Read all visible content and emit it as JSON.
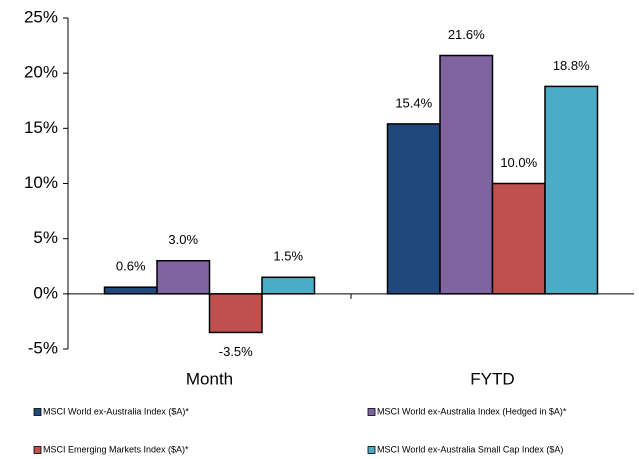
{
  "chart_data": {
    "type": "bar",
    "categories": [
      "Month",
      "FYTD"
    ],
    "series": [
      {
        "name": "MSCI World ex-Australia Index ($A)*",
        "color": "#1f497d",
        "values": [
          0.6,
          15.4
        ],
        "value_labels": [
          "0.6%",
          "15.4%"
        ]
      },
      {
        "name": "MSCI World ex-Australia Index (Hedged in $A)*",
        "color": "#8064a2",
        "values": [
          3.0,
          21.6
        ],
        "value_labels": [
          "3.0%",
          "21.6%"
        ]
      },
      {
        "name": "MSCI Emerging Markets Index ($A)*",
        "color": "#c0504d",
        "values": [
          -3.5,
          10.0
        ],
        "value_labels": [
          "-3.5%",
          "10.0%"
        ]
      },
      {
        "name": "MSCI World ex-Australia Small Cap Index ($A)",
        "color": "#4bacc6",
        "values": [
          1.5,
          18.8
        ],
        "value_labels": [
          "1.5%",
          "18.8%"
        ]
      }
    ],
    "ylim": [
      -5,
      25
    ],
    "yticks": [
      {
        "value": -5,
        "label": "-5%"
      },
      {
        "value": 0,
        "label": "0%"
      },
      {
        "value": 5,
        "label": "5%"
      },
      {
        "value": 10,
        "label": "10%"
      },
      {
        "value": 15,
        "label": "15%"
      },
      {
        "value": 20,
        "label": "20%"
      },
      {
        "value": 25,
        "label": "25%"
      }
    ],
    "grid": false
  }
}
